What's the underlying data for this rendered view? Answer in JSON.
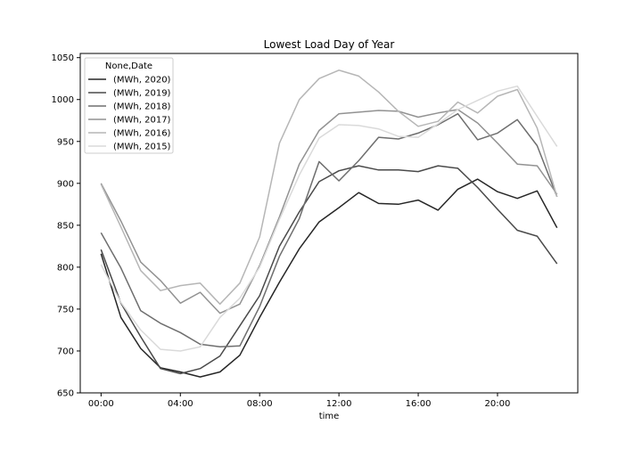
{
  "chart_data": {
    "type": "line",
    "title": "Lowest Load Day of Year",
    "xlabel": "time",
    "ylabel": "",
    "x_unit": "hour of day",
    "x": [
      0,
      1,
      2,
      3,
      4,
      5,
      6,
      7,
      8,
      9,
      10,
      11,
      12,
      13,
      14,
      15,
      16,
      17,
      18,
      19,
      20,
      21,
      22,
      23
    ],
    "xticks": [
      0,
      4,
      8,
      12,
      16,
      20
    ],
    "xtick_labels": [
      "00:00",
      "04:00",
      "08:00",
      "12:00",
      "16:00",
      "20:00"
    ],
    "xlim": [
      -1.05,
      24.05
    ],
    "ylim": [
      650,
      1055
    ],
    "yticks": [
      650,
      700,
      750,
      800,
      850,
      900,
      950,
      1000,
      1050
    ],
    "ytick_labels": [
      "650",
      "700",
      "750",
      "800",
      "850",
      "900",
      "950",
      "1000",
      "1050"
    ],
    "grid": false,
    "legend": {
      "title": "None,Date",
      "placement": "top-left"
    },
    "series": [
      {
        "name": "(MWh, 2020)",
        "color": "#262626",
        "values": [
          816,
          740,
          703,
          680,
          675,
          669,
          675,
          695,
          740,
          782,
          822,
          854,
          871,
          889,
          876,
          875,
          880,
          868,
          893,
          905,
          890,
          882,
          891,
          847
        ]
      },
      {
        "name": "(MWh, 2019)",
        "color": "#4a4a4a",
        "values": [
          821,
          757,
          717,
          679,
          673,
          679,
          694,
          730,
          766,
          825,
          866,
          902,
          915,
          921,
          916,
          916,
          914,
          921,
          918,
          895,
          869,
          844,
          837,
          804
        ]
      },
      {
        "name": "(MWh, 2018)",
        "color": "#6e6e6e",
        "values": [
          841,
          799,
          748,
          733,
          722,
          708,
          705,
          706,
          753,
          813,
          858,
          926,
          903,
          927,
          955,
          953,
          960,
          970,
          983,
          952,
          960,
          976,
          945,
          884
        ]
      },
      {
        "name": "(MWh, 2017)",
        "color": "#929292",
        "values": [
          900,
          855,
          806,
          784,
          757,
          770,
          745,
          756,
          802,
          860,
          923,
          963,
          983,
          985,
          987,
          986,
          979,
          984,
          988,
          972,
          948,
          923,
          921,
          887
        ]
      },
      {
        "name": "(MWh, 2016)",
        "color": "#b6b6b6",
        "values": [
          899,
          848,
          796,
          772,
          778,
          781,
          756,
          781,
          836,
          948,
          1000,
          1025,
          1035,
          1028,
          1009,
          986,
          968,
          974,
          997,
          984,
          1004,
          1012,
          966,
          884
        ]
      },
      {
        "name": "(MWh, 2015)",
        "color": "#dadada",
        "values": [
          803,
          758,
          725,
          702,
          700,
          705,
          740,
          763,
          800,
          857,
          910,
          954,
          970,
          969,
          965,
          956,
          955,
          971,
          988,
          999,
          1010,
          1016,
          980,
          944
        ]
      }
    ]
  }
}
